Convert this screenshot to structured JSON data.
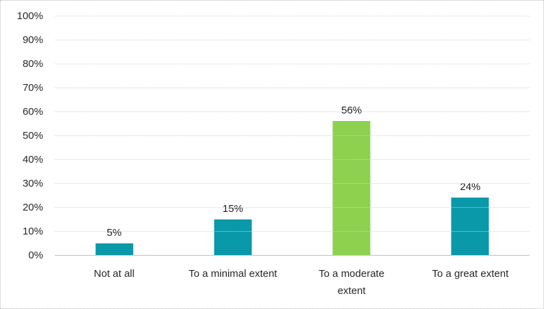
{
  "chart_data": {
    "type": "bar",
    "categories": [
      "Not at all",
      "To a minimal extent",
      "To a moderate\nextent",
      "To a great extent"
    ],
    "values": [
      5,
      15,
      56,
      24
    ],
    "value_labels": [
      "5%",
      "15%",
      "56%",
      "24%"
    ],
    "bar_colors": [
      "#0999A8",
      "#0999A8",
      "#8DD14F",
      "#0999A8"
    ],
    "yticks": [
      "0%",
      "10%",
      "20%",
      "30%",
      "40%",
      "50%",
      "60%",
      "70%",
      "80%",
      "90%",
      "100%"
    ],
    "ylim": [
      0,
      100
    ],
    "grid": "horizontal-dotted",
    "legend": "none",
    "title": ""
  },
  "colors": {
    "bar_teal": "#0999A8",
    "bar_green": "#8DD14F",
    "gridline": "#D2D2D2",
    "axis_line": "#BFBFBF",
    "text": "#262626",
    "frame_border": "#B9B9B9"
  }
}
